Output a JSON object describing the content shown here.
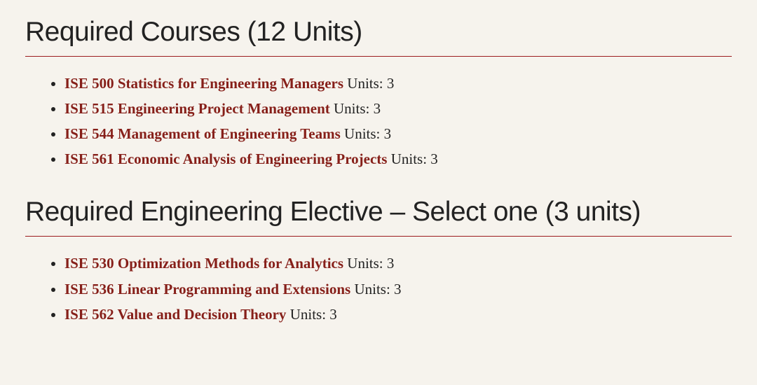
{
  "colors": {
    "background": "#f6f3ed",
    "heading_text": "#222222",
    "link_text": "#861f19",
    "body_text": "#222222",
    "divider": "#9b1b1e"
  },
  "typography": {
    "heading_font": "Helvetica Neue",
    "heading_fontsize": 39,
    "heading_weight": 300,
    "body_font": "Georgia",
    "body_fontsize": 21,
    "link_weight": 600
  },
  "sections": [
    {
      "heading": "Required Courses (12 Units)",
      "courses": [
        {
          "link": "ISE 500 Statistics for Engineering Managers",
          "units": " Units: 3"
        },
        {
          "link": "ISE 515 Engineering Project Management",
          "units": " Units: 3"
        },
        {
          "link": "ISE 544 Management of Engineering Teams",
          "units": " Units: 3"
        },
        {
          "link": "ISE 561 Economic Analysis of Engineering Projects",
          "units": " Units: 3"
        }
      ]
    },
    {
      "heading": "Required Engineering Elective – Select one (3 units)",
      "courses": [
        {
          "link": "ISE 530 Optimization Methods for Analytics",
          "units": " Units: 3"
        },
        {
          "link": "ISE 536 Linear Programming and Extensions",
          "units": " Units: 3"
        },
        {
          "link": "ISE 562 Value and Decision Theory",
          "units": " Units: 3"
        }
      ]
    }
  ]
}
